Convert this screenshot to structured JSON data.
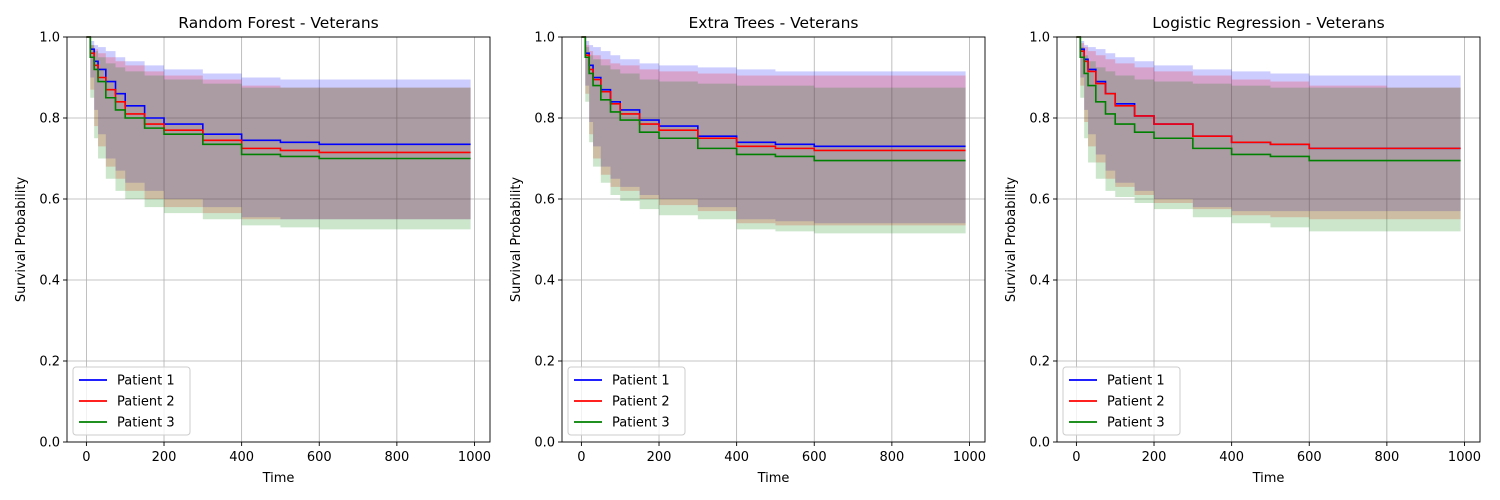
{
  "chart_data": [
    {
      "type": "line",
      "title": "Random Forest - Veterans",
      "xlabel": "Time",
      "ylabel": "Survival Probability",
      "xlim": [
        -50,
        1040
      ],
      "ylim": [
        0.0,
        1.0
      ],
      "xticks": [
        0,
        200,
        400,
        600,
        800,
        1000
      ],
      "yticks": [
        0.0,
        0.2,
        0.4,
        0.6,
        0.8,
        1.0
      ],
      "grid": true,
      "legend_position": "lower-left",
      "x": [
        0,
        10,
        20,
        30,
        50,
        75,
        100,
        150,
        200,
        300,
        400,
        500,
        600,
        800,
        990
      ],
      "series": [
        {
          "name": "Patient 1",
          "color": "#0000ff",
          "values": [
            1.0,
            0.97,
            0.94,
            0.92,
            0.89,
            0.86,
            0.83,
            0.8,
            0.785,
            0.76,
            0.745,
            0.74,
            0.735,
            0.735,
            0.735
          ],
          "lower": [
            1.0,
            0.9,
            0.82,
            0.76,
            0.7,
            0.67,
            0.64,
            0.62,
            0.6,
            0.58,
            0.555,
            0.55,
            0.55,
            0.55,
            0.55
          ],
          "upper": [
            1.0,
            0.99,
            0.98,
            0.975,
            0.965,
            0.95,
            0.94,
            0.93,
            0.92,
            0.91,
            0.9,
            0.895,
            0.895,
            0.895,
            0.895
          ]
        },
        {
          "name": "Patient 2",
          "color": "#ff0000",
          "values": [
            1.0,
            0.96,
            0.93,
            0.9,
            0.87,
            0.84,
            0.81,
            0.785,
            0.77,
            0.745,
            0.725,
            0.72,
            0.715,
            0.715,
            0.715
          ],
          "lower": [
            1.0,
            0.87,
            0.78,
            0.73,
            0.68,
            0.65,
            0.62,
            0.6,
            0.58,
            0.565,
            0.55,
            0.55,
            0.55,
            0.55,
            0.55
          ],
          "upper": [
            1.0,
            0.98,
            0.97,
            0.96,
            0.95,
            0.94,
            0.93,
            0.915,
            0.905,
            0.895,
            0.88,
            0.875,
            0.875,
            0.875,
            0.875
          ]
        },
        {
          "name": "Patient 3",
          "color": "#008000",
          "values": [
            1.0,
            0.95,
            0.92,
            0.89,
            0.85,
            0.82,
            0.8,
            0.775,
            0.76,
            0.735,
            0.71,
            0.705,
            0.7,
            0.7,
            0.7
          ],
          "lower": [
            1.0,
            0.85,
            0.75,
            0.7,
            0.65,
            0.62,
            0.6,
            0.58,
            0.565,
            0.55,
            0.535,
            0.53,
            0.525,
            0.525,
            0.525
          ],
          "upper": [
            1.0,
            0.98,
            0.965,
            0.95,
            0.935,
            0.925,
            0.915,
            0.905,
            0.895,
            0.885,
            0.875,
            0.875,
            0.875,
            0.875,
            0.875
          ]
        }
      ]
    },
    {
      "type": "line",
      "title": "Extra Trees - Veterans",
      "xlabel": "Time",
      "ylabel": "Survival Probability",
      "xlim": [
        -50,
        1040
      ],
      "ylim": [
        0.0,
        1.0
      ],
      "xticks": [
        0,
        200,
        400,
        600,
        800,
        1000
      ],
      "yticks": [
        0.0,
        0.2,
        0.4,
        0.6,
        0.8,
        1.0
      ],
      "grid": true,
      "legend_position": "lower-left",
      "x": [
        0,
        10,
        20,
        30,
        50,
        75,
        100,
        150,
        200,
        300,
        400,
        500,
        600,
        800,
        990
      ],
      "series": [
        {
          "name": "Patient 1",
          "color": "#0000ff",
          "values": [
            1.0,
            0.96,
            0.93,
            0.9,
            0.87,
            0.84,
            0.82,
            0.795,
            0.78,
            0.755,
            0.74,
            0.735,
            0.73,
            0.73,
            0.73
          ],
          "lower": [
            1.0,
            0.88,
            0.79,
            0.73,
            0.68,
            0.65,
            0.63,
            0.61,
            0.6,
            0.58,
            0.55,
            0.545,
            0.54,
            0.54,
            0.54
          ],
          "upper": [
            1.0,
            0.99,
            0.98,
            0.975,
            0.965,
            0.955,
            0.945,
            0.935,
            0.93,
            0.925,
            0.92,
            0.915,
            0.915,
            0.915,
            0.915
          ]
        },
        {
          "name": "Patient 2",
          "color": "#ff0000",
          "values": [
            1.0,
            0.955,
            0.92,
            0.895,
            0.865,
            0.835,
            0.81,
            0.785,
            0.77,
            0.75,
            0.73,
            0.725,
            0.72,
            0.72,
            0.72
          ],
          "lower": [
            1.0,
            0.86,
            0.76,
            0.7,
            0.66,
            0.63,
            0.62,
            0.6,
            0.585,
            0.57,
            0.54,
            0.535,
            0.535,
            0.535,
            0.535
          ],
          "upper": [
            1.0,
            0.98,
            0.965,
            0.955,
            0.945,
            0.935,
            0.93,
            0.92,
            0.915,
            0.91,
            0.905,
            0.905,
            0.905,
            0.905,
            0.905
          ]
        },
        {
          "name": "Patient 3",
          "color": "#008000",
          "values": [
            1.0,
            0.95,
            0.91,
            0.88,
            0.845,
            0.815,
            0.795,
            0.765,
            0.75,
            0.725,
            0.71,
            0.705,
            0.695,
            0.695,
            0.695
          ],
          "lower": [
            1.0,
            0.84,
            0.74,
            0.68,
            0.64,
            0.61,
            0.595,
            0.575,
            0.56,
            0.55,
            0.525,
            0.52,
            0.515,
            0.515,
            0.515
          ],
          "upper": [
            1.0,
            0.975,
            0.955,
            0.945,
            0.93,
            0.92,
            0.91,
            0.895,
            0.89,
            0.885,
            0.88,
            0.88,
            0.875,
            0.875,
            0.875
          ]
        }
      ]
    },
    {
      "type": "line",
      "title": "Logistic Regression - Veterans",
      "xlabel": "Time",
      "ylabel": "Survival Probability",
      "xlim": [
        -50,
        1040
      ],
      "ylim": [
        0.0,
        1.0
      ],
      "xticks": [
        0,
        200,
        400,
        600,
        800,
        1000
      ],
      "yticks": [
        0.0,
        0.2,
        0.4,
        0.6,
        0.8,
        1.0
      ],
      "grid": true,
      "legend_position": "lower-left",
      "x": [
        0,
        10,
        20,
        30,
        50,
        75,
        100,
        150,
        200,
        300,
        400,
        500,
        600,
        800,
        990
      ],
      "series": [
        {
          "name": "Patient 1",
          "color": "#0000ff",
          "values": [
            1.0,
            0.97,
            0.945,
            0.92,
            0.89,
            0.86,
            0.835,
            0.805,
            0.785,
            0.755,
            0.74,
            0.735,
            0.725,
            0.725,
            0.725
          ],
          "lower": [
            1.0,
            0.9,
            0.82,
            0.76,
            0.71,
            0.67,
            0.64,
            0.62,
            0.6,
            0.58,
            0.57,
            0.57,
            0.57,
            0.57,
            0.57
          ],
          "upper": [
            1.0,
            0.99,
            0.98,
            0.975,
            0.97,
            0.96,
            0.95,
            0.94,
            0.93,
            0.92,
            0.915,
            0.91,
            0.905,
            0.905,
            0.905
          ]
        },
        {
          "name": "Patient 2",
          "color": "#ff0000",
          "values": [
            1.0,
            0.965,
            0.94,
            0.915,
            0.885,
            0.86,
            0.83,
            0.805,
            0.785,
            0.755,
            0.74,
            0.735,
            0.725,
            0.725,
            0.725
          ],
          "lower": [
            1.0,
            0.88,
            0.79,
            0.73,
            0.69,
            0.65,
            0.63,
            0.61,
            0.59,
            0.575,
            0.56,
            0.555,
            0.55,
            0.55,
            0.55
          ],
          "upper": [
            1.0,
            0.985,
            0.975,
            0.965,
            0.955,
            0.945,
            0.935,
            0.925,
            0.915,
            0.905,
            0.895,
            0.89,
            0.88,
            0.875,
            0.875
          ]
        },
        {
          "name": "Patient 3",
          "color": "#008000",
          "values": [
            1.0,
            0.95,
            0.91,
            0.88,
            0.84,
            0.81,
            0.785,
            0.765,
            0.75,
            0.725,
            0.71,
            0.705,
            0.695,
            0.695,
            0.695
          ],
          "lower": [
            1.0,
            0.85,
            0.75,
            0.69,
            0.65,
            0.62,
            0.605,
            0.59,
            0.575,
            0.555,
            0.54,
            0.53,
            0.52,
            0.52,
            0.52
          ],
          "upper": [
            1.0,
            0.975,
            0.955,
            0.94,
            0.925,
            0.915,
            0.905,
            0.895,
            0.89,
            0.885,
            0.88,
            0.875,
            0.875,
            0.875,
            0.875
          ]
        }
      ]
    }
  ]
}
